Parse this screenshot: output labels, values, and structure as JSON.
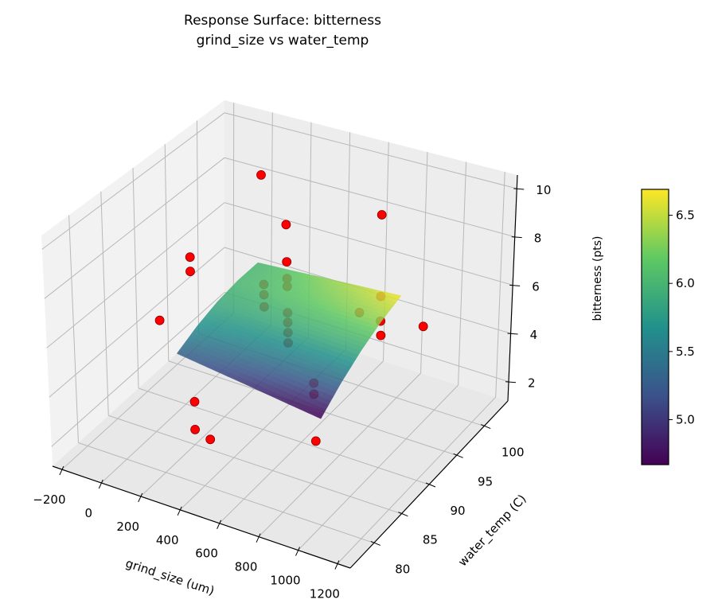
{
  "chart_data": {
    "type": "surface3d",
    "title": "Response Surface: bitterness",
    "subtitle": "grind_size vs water_temp",
    "xlabel": "grind_size (um)",
    "ylabel": "water_temp (C)",
    "zlabel": "bitterness (pts)",
    "xlim": [
      -248,
      1265
    ],
    "ylim": [
      75.7,
      104.3
    ],
    "zlim": [
      1.2,
      10.56
    ],
    "xticks": [
      -200,
      0,
      200,
      400,
      600,
      800,
      1000,
      1200
    ],
    "xtick_labels": [
      "−200",
      "0",
      "200",
      "400",
      "600",
      "800",
      "1000",
      "1200"
    ],
    "yticks": [
      80,
      85,
      90,
      95,
      100
    ],
    "ytick_labels": [
      "80",
      "85",
      "90",
      "95",
      "100"
    ],
    "zticks": [
      2,
      4,
      6,
      8,
      10
    ],
    "ztick_labels": [
      "2",
      "4",
      "6",
      "8",
      "10"
    ],
    "grid": true,
    "colormap": "viridis",
    "colorbar": {
      "range": [
        4.67,
        6.69
      ],
      "ticks": [
        5.0,
        5.5,
        6.0,
        6.5
      ],
      "tick_labels": [
        "5.0",
        "5.5",
        "6.0",
        "6.5"
      ]
    },
    "surface": {
      "x": [
        170,
        352.5,
        535,
        717.5,
        900
      ],
      "y": [
        83,
        86.375,
        89.75,
        93.125,
        96.5
      ],
      "z": [
        [
          5.3,
          5.14,
          4.98,
          4.81,
          4.65
        ],
        [
          5.66,
          5.58,
          5.5,
          5.42,
          5.34
        ],
        [
          5.9,
          5.9,
          5.9,
          5.9,
          5.9
        ],
        [
          6.01,
          6.09,
          6.18,
          6.26,
          6.34
        ],
        [
          6.0,
          6.16,
          6.33,
          6.49,
          6.65
        ]
      ]
    },
    "points": {
      "color": "#ff0000",
      "edge_color": "#8b0000",
      "xyz": [
        [
          129,
          98.6,
          8.98
        ],
        [
          743,
          98.6,
          9.04
        ],
        [
          521,
          90,
          9.94
        ],
        [
          27,
          90,
          7.27
        ],
        [
          27,
          90,
          6.69
        ],
        [
          521,
          90,
          8.43
        ],
        [
          521,
          90,
          7.75
        ],
        [
          177,
          97.2,
          4.98
        ],
        [
          177,
          97.2,
          4.56
        ],
        [
          177,
          97.2,
          4.07
        ],
        [
          521,
          90,
          7.43
        ],
        [
          999,
          90,
          8.33
        ],
        [
          888,
          90,
          7.37
        ],
        [
          521,
          90,
          6.36
        ],
        [
          521,
          90,
          5.97
        ],
        [
          521,
          90,
          5.56
        ],
        [
          521,
          90,
          5.14
        ],
        [
          44,
          84.3,
          6.01
        ],
        [
          905,
          92.9,
          6.43
        ],
        [
          905,
          92.9,
          5.85
        ],
        [
          1035,
          95.7,
          5.95
        ],
        [
          917,
          81.4,
          6.49
        ],
        [
          917,
          81.4,
          6.04
        ],
        [
          306,
          81.4,
          4.07
        ],
        [
          306,
          81.4,
          2.94
        ],
        [
          383,
          81.4,
          2.75
        ],
        [
          654,
          90,
          1.52
        ]
      ]
    }
  }
}
